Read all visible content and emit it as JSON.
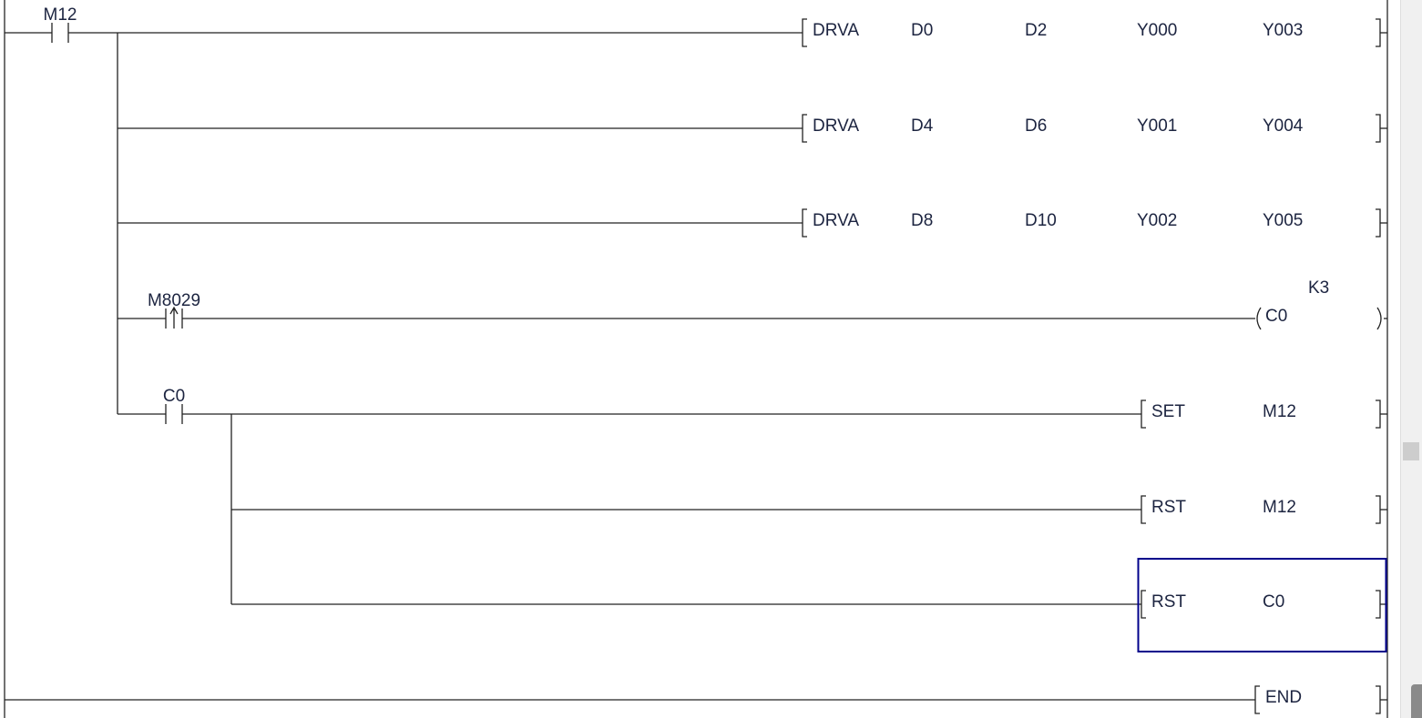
{
  "colors": {
    "text": "#1c2440",
    "wire": "#222222",
    "selection": "#00008b"
  },
  "rungs": [
    {
      "contact": {
        "label": "M12",
        "type": "normally-open"
      },
      "outputs": [
        {
          "kind": "instruction",
          "op": "DRVA",
          "operands": [
            "D0",
            "D2",
            "Y000",
            "Y003"
          ]
        },
        {
          "kind": "instruction",
          "op": "DRVA",
          "operands": [
            "D4",
            "D6",
            "Y001",
            "Y004"
          ]
        },
        {
          "kind": "instruction",
          "op": "DRVA",
          "operands": [
            "D8",
            "D10",
            "Y002",
            "Y005"
          ]
        }
      ]
    },
    {
      "contact": {
        "label": "M8029",
        "type": "rising-edge"
      },
      "outputs": [
        {
          "kind": "coil",
          "device": "C0",
          "setpoint": "K3"
        }
      ]
    },
    {
      "contact": {
        "label": "C0",
        "type": "normally-open"
      },
      "outputs": [
        {
          "kind": "instruction",
          "op": "SET",
          "operands": [
            "M12"
          ]
        },
        {
          "kind": "instruction",
          "op": "RST",
          "operands": [
            "M12"
          ]
        },
        {
          "kind": "instruction",
          "op": "RST",
          "operands": [
            "C0"
          ],
          "selected": true
        }
      ]
    }
  ],
  "end": {
    "op": "END"
  }
}
